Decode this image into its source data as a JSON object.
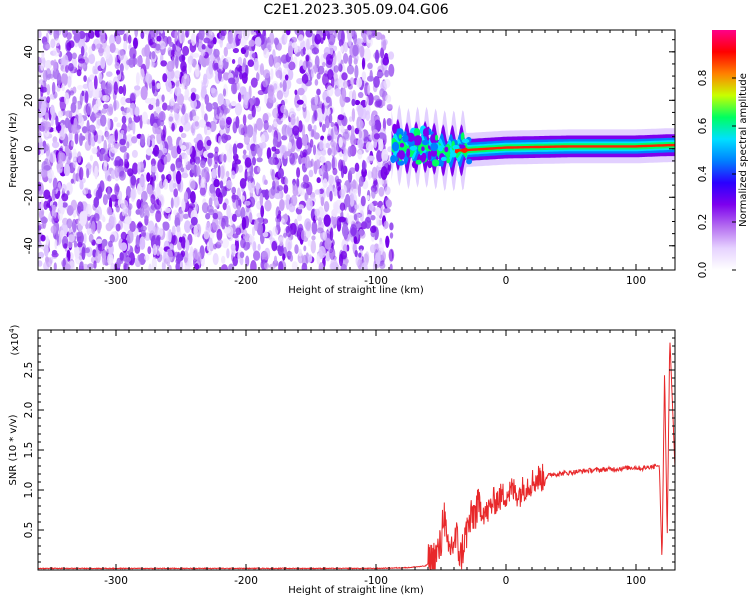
{
  "title": "C2E1.2023.305.09.04.G06",
  "chart_data": [
    {
      "type": "heatmap",
      "xlabel": "Height of straight line (km)",
      "ylabel": "Frequency (Hz)",
      "xlim": [
        -360,
        130
      ],
      "ylim": [
        -50,
        49
      ],
      "x_ticks": [
        "-300",
        "-200",
        "-100",
        "0",
        "100"
      ],
      "x_tick_values": [
        -300,
        -200,
        -100,
        0,
        100
      ],
      "y_ticks": [
        "-40",
        "-20",
        "0",
        "20",
        "40"
      ],
      "y_tick_values": [
        -40,
        -20,
        0,
        20,
        40
      ],
      "noise_region_x": [
        -360,
        -88
      ],
      "signal_region_x": [
        -88,
        130
      ],
      "signal_frequency_hz": [
        {
          "x": -85,
          "f": 2
        },
        {
          "x": -75,
          "f": 0
        },
        {
          "x": -65,
          "f": 1
        },
        {
          "x": -55,
          "f": 0
        },
        {
          "x": -45,
          "f": -1
        },
        {
          "x": -30,
          "f": -0.5
        },
        {
          "x": 0,
          "f": 0.5
        },
        {
          "x": 50,
          "f": 1
        },
        {
          "x": 100,
          "f": 1
        },
        {
          "x": 125,
          "f": 1.5
        }
      ],
      "colorbar": {
        "label": "Normalized spectral amplitude",
        "range": [
          0.0,
          1.0
        ],
        "ticks": [
          "0.0",
          "0.2",
          "0.4",
          "0.6",
          "0.8"
        ],
        "tick_values": [
          0.0,
          0.2,
          0.4,
          0.6,
          0.8
        ],
        "colors": [
          "#ffffff",
          "#e6d2ff",
          "#b46cf0",
          "#7d00ee",
          "#2a00ff",
          "#0080ff",
          "#00e0ff",
          "#00ff60",
          "#c8ff00",
          "#ff8000",
          "#ff0000",
          "#ff0088"
        ]
      }
    },
    {
      "type": "line",
      "xlabel": "Height of straight line (km)",
      "ylabel": "SNR (10 * v/v)",
      "y_multiplier": "(x10",
      "y_multiplier_exp": "4",
      "y_multiplier_close": ")",
      "xlim": [
        -360,
        130
      ],
      "ylim": [
        0,
        3.0
      ],
      "x_ticks": [
        "-300",
        "-200",
        "-100",
        "0",
        "100"
      ],
      "x_tick_values": [
        -300,
        -200,
        -100,
        0,
        100
      ],
      "y_ticks": [
        "0.5",
        "1.0",
        "1.5",
        "2.0",
        "2.5"
      ],
      "y_tick_values": [
        0.5,
        1.0,
        1.5,
        2.0,
        2.5
      ],
      "color": "#e8282a",
      "series": [
        {
          "x": [
            -360,
            -300,
            -200,
            -100,
            -75,
            -62,
            -55,
            -50,
            -48,
            -45,
            -42,
            -38,
            -35,
            -30,
            -25,
            -20,
            -15,
            -10,
            -5,
            0,
            5,
            10,
            15,
            20,
            25,
            30,
            35,
            40,
            50,
            60,
            70,
            80,
            90,
            95,
            100,
            105,
            110,
            115,
            118,
            120,
            122,
            124,
            126,
            130
          ],
          "y": [
            0.02,
            0.02,
            0.02,
            0.02,
            0.03,
            0.05,
            0.15,
            0.3,
            0.8,
            0.2,
            0.3,
            0.4,
            0.15,
            0.5,
            0.7,
            0.8,
            0.7,
            0.85,
            0.9,
            0.95,
            1.0,
            0.95,
            1.05,
            1.1,
            1.15,
            1.15,
            1.2,
            1.2,
            1.22,
            1.24,
            1.25,
            1.26,
            1.27,
            1.28,
            1.28,
            1.27,
            1.29,
            1.3,
            1.3,
            0.1,
            2.5,
            0.4,
            2.9,
            1.28
          ]
        }
      ]
    }
  ]
}
